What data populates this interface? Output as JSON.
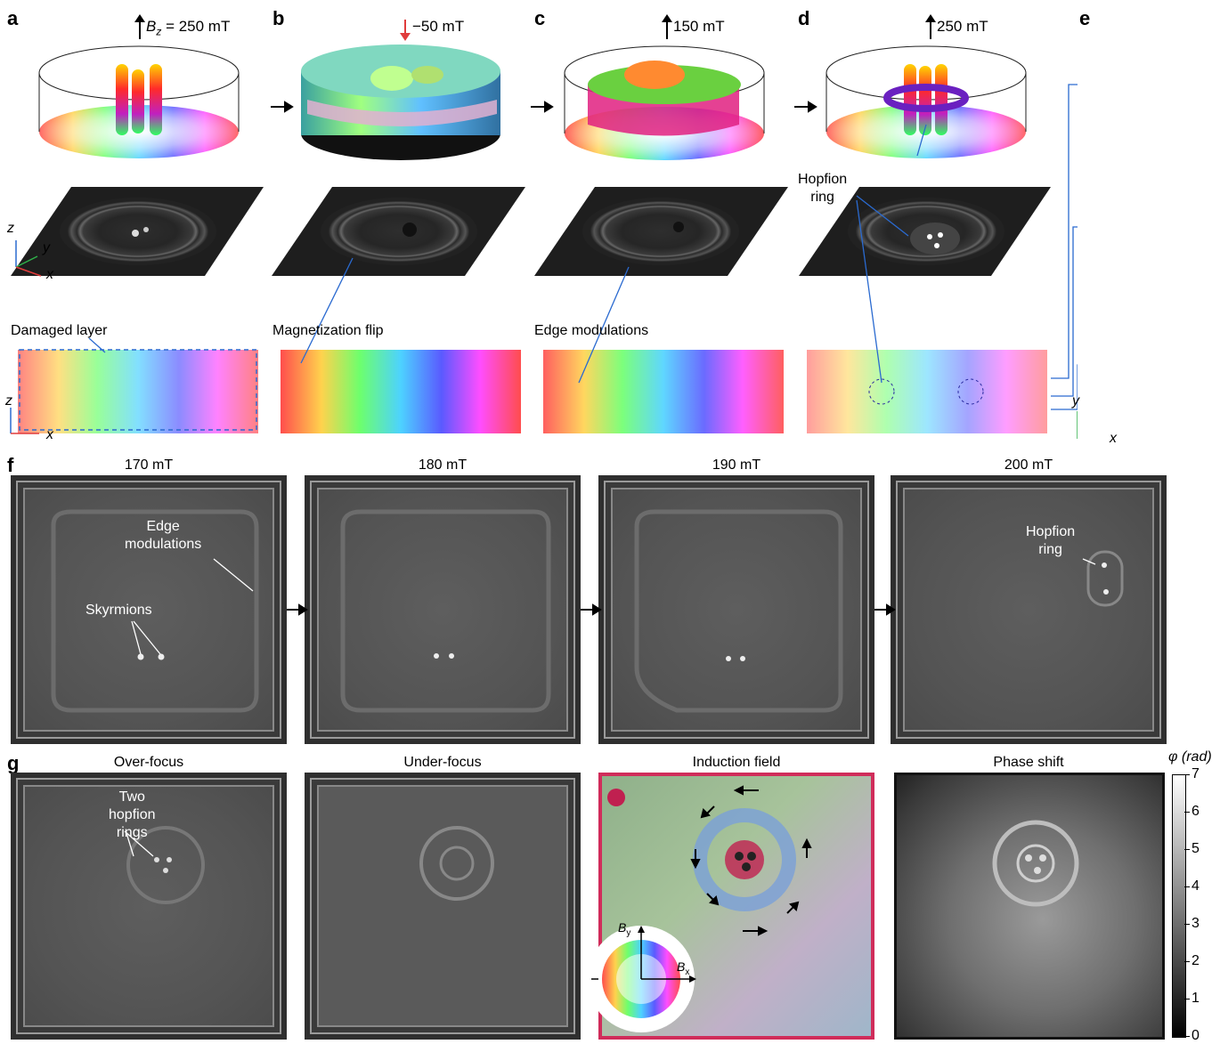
{
  "panels": {
    "a": {
      "letter": "a",
      "field_symbol": "B",
      "field_subscript": "z",
      "field_value": " = 250 mT",
      "annotation": "Damaged layer"
    },
    "b": {
      "letter": "b",
      "field": "−50 mT",
      "annotation": "Magnetization flip"
    },
    "c": {
      "letter": "c",
      "field": "150 mT",
      "annotation": "Edge modulations"
    },
    "d": {
      "letter": "d",
      "field": "250 mT",
      "annotation": "Hopfion\nring"
    },
    "e": {
      "letter": "e"
    },
    "f": {
      "letter": "f",
      "frames": [
        "170 mT",
        "180 mT",
        "190 mT",
        "200 mT"
      ],
      "annotations": {
        "edge": "Edge\nmodulations",
        "skyrmions": "Skyrmions",
        "hopfion": "Hopfion\nring"
      }
    },
    "g": {
      "letter": "g",
      "frames": [
        "Over-focus",
        "Under-focus",
        "Induction field",
        "Phase shift"
      ],
      "annotations": {
        "two_rings": "Two\nhopfion\nrings"
      },
      "color_wheel": {
        "by": "B",
        "by_sub": "y",
        "bx": "B",
        "bx_sub": "x"
      },
      "colorbar": {
        "label": "φ (rad)",
        "ticks": [
          "7",
          "6",
          "5",
          "4",
          "3",
          "2",
          "1",
          "0"
        ]
      }
    }
  },
  "axes": {
    "z": "z",
    "y": "y",
    "x": "x"
  }
}
